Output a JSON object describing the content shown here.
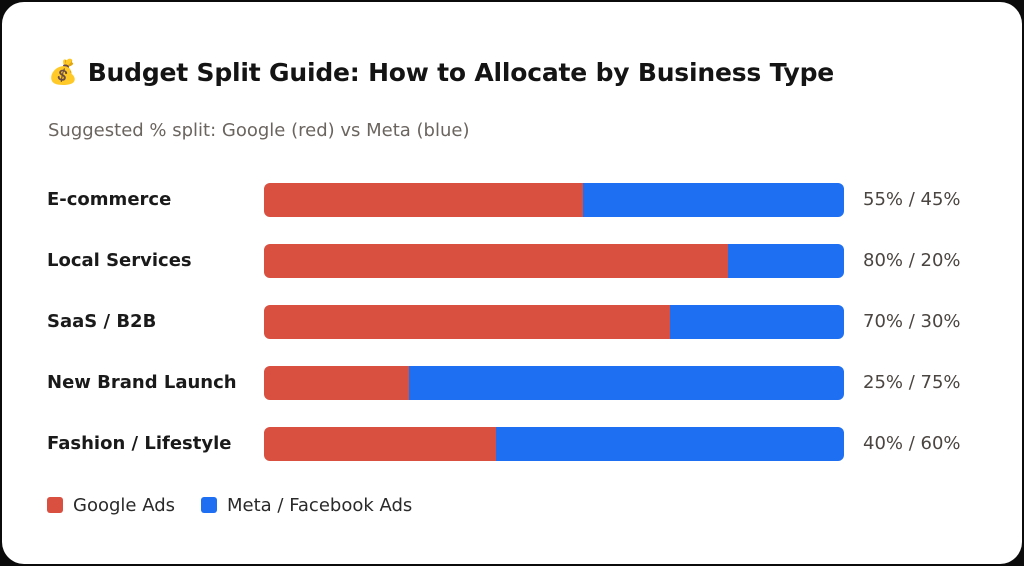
{
  "colors": {
    "google": "#d94f40",
    "meta": "#1f6ff2"
  },
  "header": {
    "emoji": "💰",
    "title": "Budget Split Guide: How to Allocate by Business Type",
    "subtitle": "Suggested % split: Google (red) vs Meta (blue)"
  },
  "chart_data": {
    "type": "bar",
    "stacked": true,
    "orientation": "horizontal",
    "title": "Budget Split Guide: How to Allocate by Business Type",
    "subtitle": "Suggested % split: Google (red) vs Meta (blue)",
    "categories": [
      "E-commerce",
      "Local Services",
      "SaaS / B2B",
      "New Brand Launch",
      "Fashion / Lifestyle"
    ],
    "series": [
      {
        "name": "Google Ads",
        "values": [
          55,
          80,
          70,
          25,
          40
        ]
      },
      {
        "name": "Meta / Facebook Ads",
        "values": [
          45,
          20,
          30,
          75,
          60
        ]
      }
    ],
    "value_labels": [
      "55% / 45%",
      "80% / 20%",
      "70% / 30%",
      "25% / 75%",
      "40% / 60%"
    ],
    "xlim": [
      0,
      100
    ],
    "legend": "bottom-left",
    "grid": false
  }
}
